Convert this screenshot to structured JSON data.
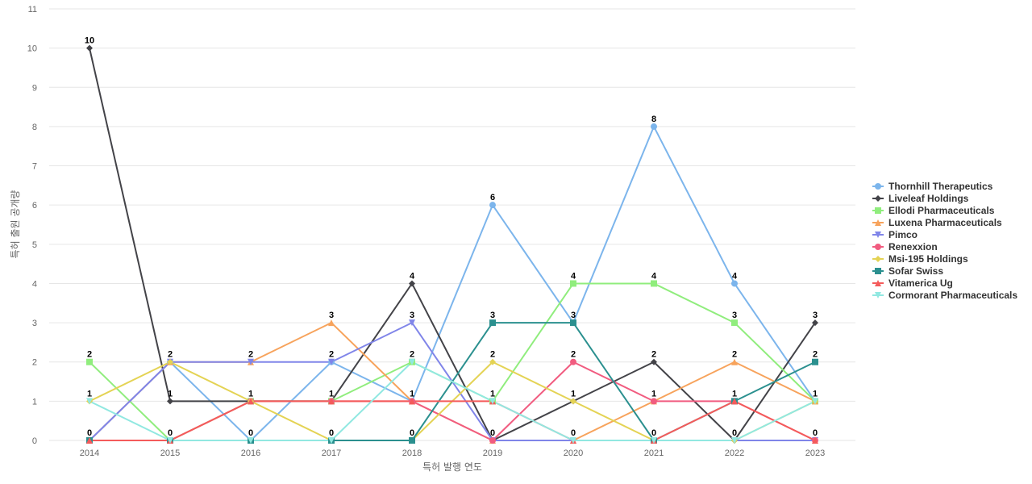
{
  "chart_data": {
    "type": "line",
    "title": "",
    "xlabel": "특허 발행 연도",
    "ylabel": "특허 출원 공개량",
    "categories": [
      "2014",
      "2015",
      "2016",
      "2017",
      "2018",
      "2019",
      "2020",
      "2021",
      "2022",
      "2023"
    ],
    "ylim": [
      0,
      11
    ],
    "yticks": [
      0,
      1,
      2,
      3,
      4,
      5,
      6,
      7,
      8,
      9,
      10,
      11
    ],
    "grid": true,
    "legend_position": "right",
    "series": [
      {
        "name": "Thornhill Therapeutics",
        "color": "#7cb5ec",
        "marker": "circle",
        "values": [
          0,
          2,
          0,
          2,
          1,
          6,
          3,
          8,
          4,
          1
        ]
      },
      {
        "name": "Liveleaf Holdings",
        "color": "#434348",
        "marker": "diamond",
        "values": [
          10,
          1,
          1,
          1,
          4,
          0,
          1,
          2,
          0,
          3
        ]
      },
      {
        "name": "Ellodi Pharmaceuticals",
        "color": "#90ed7d",
        "marker": "square",
        "values": [
          2,
          0,
          1,
          1,
          2,
          1,
          4,
          4,
          3,
          1
        ]
      },
      {
        "name": "Luxena Pharmaceuticals",
        "color": "#f7a35c",
        "marker": "triangle",
        "values": [
          0,
          2,
          2,
          3,
          1,
          0,
          0,
          1,
          2,
          1
        ]
      },
      {
        "name": "Pimco",
        "color": "#8085e9",
        "marker": "triangle-down",
        "values": [
          0,
          2,
          2,
          2,
          3,
          0,
          0,
          0,
          0,
          0
        ]
      },
      {
        "name": "Renexxion",
        "color": "#f15c80",
        "marker": "circle",
        "values": [
          0,
          0,
          1,
          1,
          1,
          0,
          2,
          1,
          1,
          0
        ]
      },
      {
        "name": "Msi-195 Holdings",
        "color": "#e4d354",
        "marker": "diamond",
        "values": [
          1,
          2,
          1,
          0,
          0,
          2,
          1,
          0,
          0,
          1
        ]
      },
      {
        "name": "Sofar Swiss",
        "color": "#2b908f",
        "marker": "square",
        "values": [
          0,
          0,
          0,
          0,
          0,
          3,
          3,
          0,
          1,
          2
        ]
      },
      {
        "name": "Vitamerica Ug",
        "color": "#f45b5b",
        "marker": "triangle",
        "values": [
          0,
          0,
          1,
          1,
          1,
          1,
          0,
          0,
          1,
          0
        ]
      },
      {
        "name": "Cormorant Pharmaceuticals",
        "color": "#91e8e1",
        "marker": "triangle-down",
        "values": [
          1,
          0,
          0,
          0,
          2,
          1,
          0,
          0,
          0,
          1
        ]
      }
    ],
    "label_values": [
      {
        "category": "2014",
        "labels": [
          10,
          2,
          1,
          0
        ]
      },
      {
        "category": "2015",
        "labels": [
          2,
          1,
          0
        ]
      },
      {
        "category": "2016",
        "labels": [
          2,
          1,
          0
        ]
      },
      {
        "category": "2017",
        "labels": [
          3,
          2,
          1,
          0
        ]
      },
      {
        "category": "2018",
        "labels": [
          4,
          3,
          2,
          1,
          0
        ]
      },
      {
        "category": "2019",
        "labels": [
          6,
          3,
          2,
          1,
          0
        ]
      },
      {
        "category": "2020",
        "labels": [
          4,
          3,
          2,
          1,
          0
        ]
      },
      {
        "category": "2021",
        "labels": [
          8,
          4,
          2,
          1,
          0
        ]
      },
      {
        "category": "2022",
        "labels": [
          4,
          3,
          2,
          1,
          0
        ]
      },
      {
        "category": "2023",
        "labels": [
          3,
          2,
          1,
          0
        ]
      }
    ]
  }
}
